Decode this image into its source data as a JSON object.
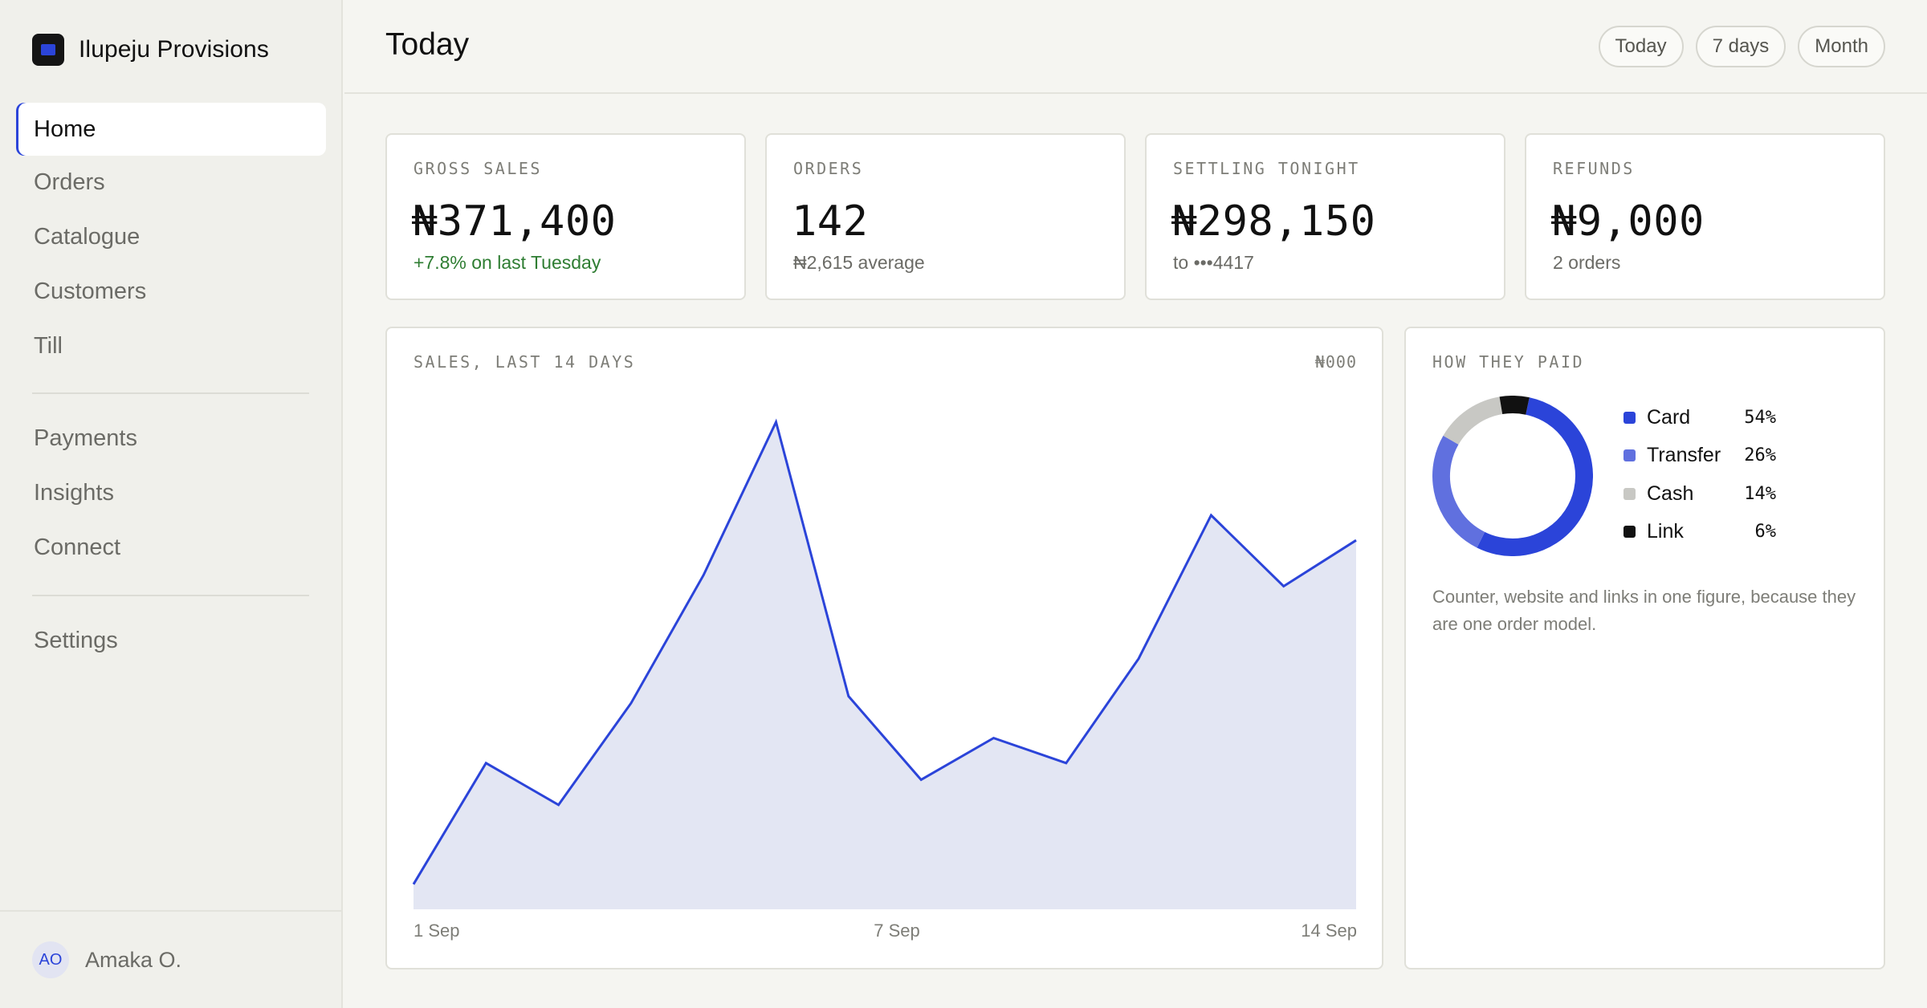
{
  "app": {
    "name": "Ilupeju Provisions",
    "brand_color": "#2b44d9"
  },
  "sidebar": {
    "items": [
      {
        "label": "Home",
        "active": true
      },
      {
        "label": "Orders"
      },
      {
        "label": "Catalogue"
      },
      {
        "label": "Customers"
      },
      {
        "label": "Till"
      },
      {
        "label": "Payments"
      },
      {
        "label": "Insights"
      },
      {
        "label": "Connect"
      },
      {
        "label": "Settings"
      }
    ],
    "user": {
      "initials": "AO",
      "name": "Amaka O."
    }
  },
  "header": {
    "title": "Today",
    "ranges": [
      "Today",
      "7 days",
      "Month"
    ]
  },
  "kpis": [
    {
      "label": "GROSS SALES",
      "value": "₦371,400",
      "sub": "+7.8% on last Tuesday",
      "trend": "up"
    },
    {
      "label": "ORDERS",
      "value": "142",
      "sub": "₦2,615 average"
    },
    {
      "label": "SETTLING TONIGHT",
      "value": "₦298,150",
      "sub": "to •••4417"
    },
    {
      "label": "REFUNDS",
      "value": "₦9,000",
      "sub": "2 orders"
    }
  ],
  "sales_chart": {
    "label": "SALES, LAST 14 DAYS",
    "unit": "₦000",
    "x_ticks": [
      "1 Sep",
      "7 Sep",
      "14 Sep"
    ],
    "line_color": "#2b44d9",
    "fill_color": "#e3e6f3"
  },
  "chart_data": {
    "type": "area",
    "title": "SALES, LAST 14 DAYS",
    "ylabel": "₦000",
    "x": [
      "1 Sep",
      "2 Sep",
      "3 Sep",
      "4 Sep",
      "5 Sep",
      "6 Sep",
      "7 Sep",
      "8 Sep",
      "9 Sep",
      "10 Sep",
      "11 Sep",
      "12 Sep",
      "13 Sep",
      "14 Sep"
    ],
    "series": [
      {
        "values": [
          18,
          105,
          75,
          148,
          240,
          350,
          153,
          93,
          123,
          105,
          180,
          283,
          232,
          265
        ]
      }
    ],
    "ylim": [
      0,
      400
    ],
    "grid": false
  },
  "payments": {
    "label": "HOW THEY PAID",
    "methods": [
      {
        "name": "Card",
        "pct_label": "54%",
        "share": 54,
        "color": "#2b44d9"
      },
      {
        "name": "Transfer",
        "pct_label": "26%",
        "share": 26,
        "color": "#6070df"
      },
      {
        "name": "Cash",
        "pct_label": "14%",
        "share": 14,
        "color": "#c8c8c4"
      },
      {
        "name": "Link",
        "pct_label": "6%",
        "share": 6,
        "color": "#111111"
      }
    ],
    "note": "Counter, website and links in one figure, because they are one order model."
  }
}
